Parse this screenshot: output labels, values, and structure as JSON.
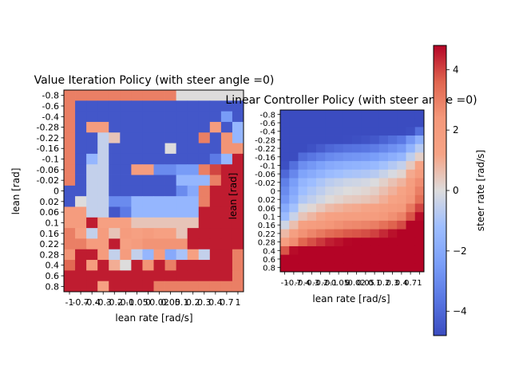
{
  "chart_data": [
    {
      "type": "heatmap",
      "title": "Value Iteration Policy (with steer angle =0)",
      "xlabel": "lean rate [rad/s]",
      "ylabel": "lean [rad]",
      "x_tick_labels": [
        "-1",
        "-0.7",
        "-0.4",
        "-0.3",
        "-0.2",
        "-0.1",
        "-0.05",
        "0",
        "0.02",
        "0.05",
        "0.1",
        "0.2",
        "0.3",
        "0.4",
        "0.7",
        "1"
      ],
      "y_tick_labels": [
        "-0.8",
        "-0.6",
        "-0.4",
        "-0.28",
        "-0.22",
        "-0.16",
        "-0.1",
        "-0.06",
        "-0.02",
        "0",
        "0.02",
        "0.06",
        "0.1",
        "0.16",
        "0.22",
        "0.28",
        "0.4",
        "0.6",
        "0.8"
      ],
      "values": [
        [
          3.0,
          3.0,
          3.0,
          3.0,
          3.0,
          3.0,
          3.0,
          3.0,
          3.0,
          3.0,
          0,
          0,
          0,
          0,
          0,
          0
        ],
        [
          3.0,
          -4.5,
          -4.5,
          -4.5,
          -4.5,
          -4.5,
          -4.5,
          -4.5,
          -4.5,
          -4.5,
          -4.5,
          -4.5,
          -4.5,
          -4.5,
          -4.5,
          -4.5
        ],
        [
          3.0,
          -4.5,
          -4.5,
          -4.5,
          -4.5,
          -4.5,
          -4.5,
          -4.5,
          -4.5,
          -4.5,
          -4.5,
          -4.5,
          -4.5,
          -4.5,
          -2.5,
          -4.5
        ],
        [
          3.0,
          -4.5,
          2.0,
          2.0,
          -4.5,
          -4.5,
          -4.5,
          -4.5,
          -4.5,
          -4.5,
          -4.5,
          -4.5,
          -4.5,
          2.0,
          -4.5,
          -1.5
        ],
        [
          3.0,
          -4.5,
          -4.5,
          -0.5,
          0.5,
          -4.5,
          -4.5,
          -4.5,
          -4.5,
          -4.5,
          -4.5,
          -4.5,
          3.0,
          -4.5,
          2.5,
          -1.5
        ],
        [
          3.0,
          -4.5,
          -4.5,
          -0.5,
          -4.5,
          -4.5,
          -4.5,
          -4.5,
          -4.5,
          0.0,
          -4.5,
          -4.5,
          -4.5,
          -4.5,
          2.5,
          2.5
        ],
        [
          3.0,
          -4.5,
          -1.5,
          -0.5,
          -4.5,
          -4.5,
          -4.5,
          -4.5,
          -4.5,
          -4.5,
          -4.5,
          -4.5,
          -4.5,
          -3.5,
          -1.5,
          4.5
        ],
        [
          3.0,
          -4.5,
          -0.5,
          -0.5,
          -4.5,
          -4.5,
          2.0,
          2.0,
          -3.0,
          -3.0,
          -2.5,
          -2.5,
          3.0,
          4.0,
          4.5,
          4.5
        ],
        [
          3.0,
          -4.5,
          -0.5,
          -0.5,
          -4.5,
          -4.5,
          -4.5,
          -4.5,
          -4.5,
          -4.5,
          -1.5,
          -1.5,
          -1.5,
          3.0,
          4.5,
          4.5
        ],
        [
          -4.5,
          -4.5,
          -0.5,
          -0.5,
          -4.5,
          -4.5,
          -4.5,
          -4.5,
          -4.5,
          -4.5,
          -3.0,
          -2.0,
          3.0,
          4.5,
          4.5,
          4.5
        ],
        [
          -4.5,
          0.0,
          -0.5,
          -0.5,
          -3.0,
          -3.0,
          -1.5,
          -1.5,
          -1.5,
          -1.5,
          -1.5,
          -1.5,
          3.0,
          4.5,
          4.5,
          4.5
        ],
        [
          2.0,
          2.0,
          -0.5,
          -0.5,
          -4.5,
          -3.5,
          -1.5,
          -1.5,
          -1.5,
          -1.5,
          -1.5,
          -1.5,
          4.5,
          4.5,
          4.5,
          4.5
        ],
        [
          2.0,
          2.0,
          4.5,
          1.5,
          1.5,
          1.5,
          0.5,
          0.5,
          0.5,
          0.5,
          0.5,
          0.5,
          4.5,
          4.5,
          4.5,
          4.5
        ],
        [
          3.0,
          1.5,
          -0.5,
          2.0,
          0.5,
          2.0,
          1.5,
          2.0,
          1.5,
          1.5,
          0.5,
          4.5,
          4.5,
          4.5,
          4.5,
          4.5
        ],
        [
          3.0,
          3.0,
          2.0,
          2.0,
          4.5,
          1.5,
          2.0,
          2.5,
          2.5,
          2.5,
          2.5,
          4.5,
          4.5,
          4.5,
          4.5,
          4.5
        ],
        [
          2.5,
          4.5,
          4.5,
          2.0,
          -0.5,
          2.0,
          -0.5,
          -1.5,
          2.0,
          -2.0,
          -1.0,
          1.5,
          -0.5,
          4.5,
          4.5,
          3.0
        ],
        [
          3.5,
          4.5,
          2.0,
          4.5,
          1.0,
          0.0,
          4.5,
          2.5,
          4.5,
          3.0,
          4.5,
          4.5,
          4.5,
          4.5,
          4.5,
          3.0
        ],
        [
          4.5,
          4.5,
          4.5,
          4.5,
          4.5,
          4.5,
          4.5,
          4.5,
          4.5,
          4.5,
          4.5,
          4.5,
          4.5,
          4.5,
          4.5,
          3.0
        ],
        [
          4.5,
          4.5,
          4.5,
          1.5,
          4.5,
          4.5,
          4.5,
          4.5,
          3.0,
          3.0,
          3.0,
          3.0,
          3.0,
          3.0,
          3.0,
          3.0
        ]
      ]
    },
    {
      "type": "heatmap",
      "title": "Linear Controller Policy (with steer angle =0)",
      "xlabel": "lean rate [rad/s]",
      "ylabel": "lean [rad]",
      "x_tick_labels": [
        "-1",
        "-0.7",
        "-0.4",
        "-0.3",
        "-0.2",
        "-0.1",
        "-0.05",
        "0",
        "0.02",
        "0.05",
        "0.1",
        "0.2",
        "0.3",
        "0.4",
        "0.7",
        "1"
      ],
      "y_tick_labels": [
        "-0.8",
        "-0.6",
        "-0.4",
        "-0.28",
        "-0.22",
        "-0.16",
        "-0.1",
        "-0.06",
        "-0.02",
        "0",
        "0.02",
        "0.06",
        "0.1",
        "0.16",
        "0.22",
        "0.28",
        "0.4",
        "0.6",
        "0.8"
      ],
      "model": "linear",
      "coef_lean": 17,
      "coef_lean_rate": 3
    }
  ],
  "colorbar": {
    "label": "steer rate [rad/s]",
    "vmin": -4.8,
    "vmax": 4.8,
    "tick_values": [
      4,
      2,
      0,
      -2,
      -4
    ],
    "tick_labels": [
      "4",
      "2",
      "0",
      "−2",
      "−4"
    ],
    "colormap": "coolwarm"
  }
}
